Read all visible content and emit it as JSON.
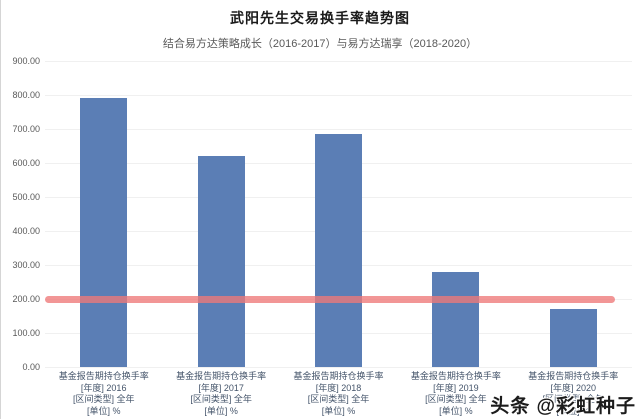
{
  "page": {
    "title": "武阳先生交易换手率趋势图",
    "subtitle": "结合易方达策略成长（2016-2017）与易方达瑞享（2018-2020）",
    "watermark": "头条 @彩虹种子"
  },
  "colors": {
    "bar": "#5b7eb5",
    "reference_line": "#ee7878",
    "gridline": "#f0f0f0",
    "title_text": "#1a1a1a",
    "subtitle_text": "#595959",
    "y_tick_text": "#595959",
    "x_tick_text": "#44546a"
  },
  "chart_data": {
    "type": "bar",
    "title": "武阳先生交易换手率趋势图",
    "subtitle": "结合易方达策略成长（2016-2017）与易方达瑞享（2018-2020）",
    "categories": [
      [
        "基金报告期持仓换手率",
        "[年度] 2016",
        "[区间类型] 全年",
        "[单位] %"
      ],
      [
        "基金报告期持仓换手率",
        "[年度] 2017",
        "[区间类型] 全年",
        "[单位] %"
      ],
      [
        "基金报告期持仓换手率",
        "[年度] 2018",
        "[区间类型] 全年",
        "[单位] %"
      ],
      [
        "基金报告期持仓换手率",
        "[年度] 2019",
        "[区间类型] 全年",
        "[单位] %"
      ],
      [
        "基金报告期持仓换手率",
        "[年度] 2020",
        "[区间类型] 全年",
        "[单位] %"
      ]
    ],
    "values": [
      790,
      620,
      685,
      280,
      170
    ],
    "ylim": [
      0,
      900
    ],
    "ytick_interval": 100,
    "ytick_decimals": 2,
    "grid": true,
    "legend": false,
    "reference_line": {
      "value": 200
    }
  }
}
